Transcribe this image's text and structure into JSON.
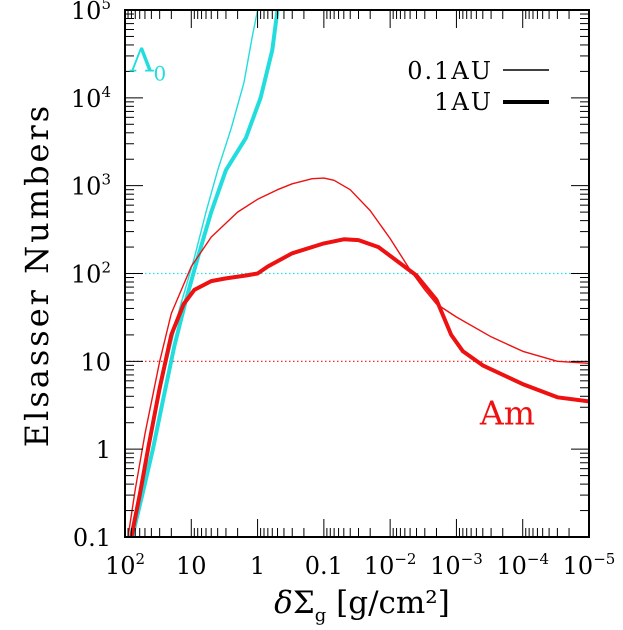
{
  "chart_data": {
    "type": "line",
    "xlabel": "δΣ_g [g/cm²]",
    "ylabel": "Elsasser Numbers",
    "x_scale": "log-reversed",
    "y_scale": "log",
    "xlim": [
      100,
      1e-05
    ],
    "ylim": [
      0.1,
      100000
    ],
    "x_ticks": [
      {
        "value": 100,
        "label": "10²"
      },
      {
        "value": 10,
        "label": "10"
      },
      {
        "value": 1,
        "label": "1"
      },
      {
        "value": 0.1,
        "label": "0.1"
      },
      {
        "value": 0.01,
        "label": "10⁻²"
      },
      {
        "value": 0.001,
        "label": "10⁻³"
      },
      {
        "value": 0.0001,
        "label": "10⁻⁴"
      },
      {
        "value": 1e-05,
        "label": "10⁻⁵"
      }
    ],
    "y_ticks": [
      {
        "value": 0.1,
        "label": "0.1"
      },
      {
        "value": 1,
        "label": "1"
      },
      {
        "value": 10,
        "label": "10"
      },
      {
        "value": 100,
        "label": "10²"
      },
      {
        "value": 1000,
        "label": "10³"
      },
      {
        "value": 10000,
        "label": "10⁴"
      },
      {
        "value": 100000,
        "label": "10⁵"
      }
    ],
    "legend": {
      "placement": "top-right",
      "entries": [
        {
          "label": "0.1AU",
          "style": "thin"
        },
        {
          "label": "1AU",
          "style": "thick"
        }
      ]
    },
    "annotations": [
      {
        "text": "Λ",
        "sub": "0",
        "color": "#22dddd",
        "x": 45,
        "y": 20000
      },
      {
        "text": "Am",
        "color": "#ee1111",
        "x": 0.00017,
        "y": 1.9
      }
    ],
    "reference_lines": [
      {
        "y": 100,
        "color": "#22dddd",
        "style": "dotted"
      },
      {
        "y": 10,
        "color": "#ee1111",
        "style": "dotted"
      }
    ],
    "series": [
      {
        "color": "#22dddd",
        "width": "thin",
        "points": [
          [
            85,
            0.1
          ],
          [
            60,
            0.35
          ],
          [
            40,
            1.5
          ],
          [
            25,
            8
          ],
          [
            15,
            40
          ],
          [
            9,
            150
          ],
          [
            6,
            500
          ],
          [
            4,
            1500
          ],
          [
            2.5,
            4500
          ],
          [
            1.6,
            15000
          ],
          [
            1.2,
            50000
          ],
          [
            1.0,
            100000
          ]
        ]
      },
      {
        "color": "#22dddd",
        "width": "thick",
        "points": [
          [
            78,
            0.1
          ],
          [
            55,
            0.3
          ],
          [
            38,
            1
          ],
          [
            26,
            4
          ],
          [
            18,
            15
          ],
          [
            12,
            50
          ],
          [
            8,
            150
          ],
          [
            5,
            500
          ],
          [
            3,
            1500
          ],
          [
            1.5,
            3500
          ],
          [
            0.9,
            10000
          ],
          [
            0.6,
            35000
          ],
          [
            0.5,
            100000
          ]
        ]
      },
      {
        "color": "#ee1111",
        "width": "thin",
        "points": [
          [
            90,
            0.1
          ],
          [
            70,
            0.35
          ],
          [
            50,
            1.5
          ],
          [
            30,
            10
          ],
          [
            20,
            35
          ],
          [
            10,
            120
          ],
          [
            5,
            260
          ],
          [
            2,
            500
          ],
          [
            1,
            700
          ],
          [
            0.5,
            900
          ],
          [
            0.3,
            1050
          ],
          [
            0.15,
            1200
          ],
          [
            0.1,
            1220
          ],
          [
            0.07,
            1150
          ],
          [
            0.04,
            900
          ],
          [
            0.02,
            520
          ],
          [
            0.01,
            250
          ],
          [
            0.005,
            110
          ],
          [
            0.003,
            65
          ],
          [
            0.002,
            45
          ],
          [
            0.001,
            32
          ],
          [
            0.0003,
            19
          ],
          [
            0.0001,
            13
          ],
          [
            3e-05,
            10
          ],
          [
            1e-05,
            9.5
          ]
        ]
      },
      {
        "color": "#ee1111",
        "width": "thick",
        "points": [
          [
            80,
            0.1
          ],
          [
            60,
            0.3
          ],
          [
            45,
            1
          ],
          [
            30,
            5
          ],
          [
            20,
            20
          ],
          [
            13,
            45
          ],
          [
            9,
            65
          ],
          [
            5,
            82
          ],
          [
            3,
            88
          ],
          [
            1.5,
            95
          ],
          [
            1,
            100
          ],
          [
            0.7,
            120
          ],
          [
            0.3,
            170
          ],
          [
            0.1,
            220
          ],
          [
            0.05,
            245
          ],
          [
            0.03,
            240
          ],
          [
            0.015,
            200
          ],
          [
            0.007,
            130
          ],
          [
            0.004,
            95
          ],
          [
            0.002,
            50
          ],
          [
            0.0012,
            20
          ],
          [
            0.0008,
            13
          ],
          [
            0.0004,
            9
          ],
          [
            0.0001,
            5.5
          ],
          [
            3e-05,
            3.9
          ],
          [
            1e-05,
            3.5
          ]
        ]
      }
    ]
  }
}
